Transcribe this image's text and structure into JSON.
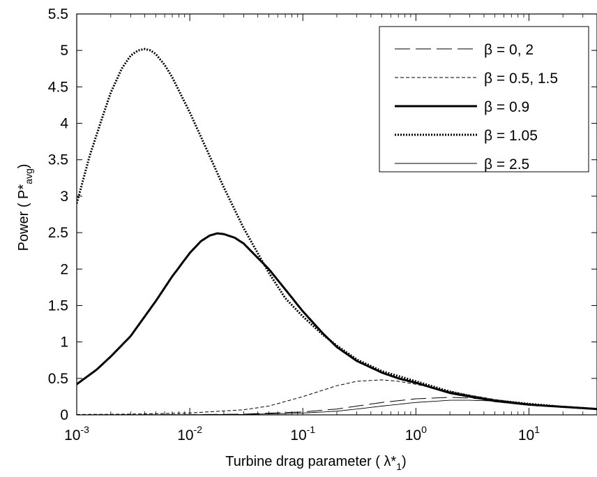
{
  "chart_data": {
    "type": "line",
    "xscale": "log",
    "xlim": [
      0.001,
      40
    ],
    "ylim": [
      0,
      5.5
    ],
    "xlabel": {
      "prefix": "Turbine drag parameter ( λ*",
      "sub": "1",
      "suffix": ")"
    },
    "ylabel": {
      "prefix": "Power ( P*",
      "sub": "avg",
      "suffix": ")"
    },
    "xticks": [
      {
        "value": 0.001,
        "base": "10",
        "exp": "-3"
      },
      {
        "value": 0.01,
        "base": "10",
        "exp": "-2"
      },
      {
        "value": 0.1,
        "base": "10",
        "exp": "-1"
      },
      {
        "value": 1,
        "base": "10",
        "exp": "0"
      },
      {
        "value": 10,
        "base": "10",
        "exp": "1"
      }
    ],
    "yticks": [
      {
        "value": 0,
        "label": "0"
      },
      {
        "value": 0.5,
        "label": "0.5"
      },
      {
        "value": 1,
        "label": "1"
      },
      {
        "value": 1.5,
        "label": "1.5"
      },
      {
        "value": 2,
        "label": "2"
      },
      {
        "value": 2.5,
        "label": "2.5"
      },
      {
        "value": 3,
        "label": "3"
      },
      {
        "value": 3.5,
        "label": "3.5"
      },
      {
        "value": 4,
        "label": "4"
      },
      {
        "value": 4.5,
        "label": "4.5"
      },
      {
        "value": 5,
        "label": "5"
      },
      {
        "value": 5.5,
        "label": "5.5"
      }
    ],
    "legend_position": "top-right",
    "series": [
      {
        "name": "β = 0, 2",
        "style": "longdash",
        "x": [
          0.001,
          0.01,
          0.03,
          0.1,
          0.2,
          0.3,
          0.5,
          1,
          2,
          3,
          5,
          10,
          20,
          40
        ],
        "y": [
          0.0,
          0.003,
          0.01,
          0.04,
          0.08,
          0.12,
          0.17,
          0.22,
          0.24,
          0.23,
          0.2,
          0.15,
          0.11,
          0.08
        ]
      },
      {
        "name": "β = 0.5, 1.5",
        "style": "dash",
        "x": [
          0.001,
          0.003,
          0.01,
          0.03,
          0.05,
          0.1,
          0.2,
          0.3,
          0.5,
          0.7,
          1,
          1.5,
          2,
          3,
          5,
          10,
          20,
          40
        ],
        "y": [
          0.005,
          0.01,
          0.025,
          0.07,
          0.12,
          0.25,
          0.4,
          0.46,
          0.48,
          0.46,
          0.42,
          0.36,
          0.32,
          0.27,
          0.21,
          0.15,
          0.11,
          0.08
        ]
      },
      {
        "name": "β = 0.9",
        "style": "thick",
        "x": [
          0.001,
          0.0015,
          0.002,
          0.003,
          0.005,
          0.007,
          0.01,
          0.0125,
          0.015,
          0.0175,
          0.02,
          0.025,
          0.03,
          0.05,
          0.07,
          0.1,
          0.15,
          0.2,
          0.3,
          0.5,
          0.7,
          1,
          2,
          3,
          5,
          10,
          20,
          40
        ],
        "y": [
          0.42,
          0.62,
          0.8,
          1.08,
          1.56,
          1.9,
          2.22,
          2.38,
          2.46,
          2.49,
          2.48,
          2.43,
          2.35,
          2.0,
          1.72,
          1.42,
          1.12,
          0.93,
          0.74,
          0.58,
          0.5,
          0.44,
          0.3,
          0.25,
          0.19,
          0.14,
          0.11,
          0.08
        ]
      },
      {
        "name": "β = 1.05",
        "style": "dotted",
        "x": [
          0.001,
          0.0013,
          0.0017,
          0.002,
          0.0025,
          0.003,
          0.0035,
          0.004,
          0.0045,
          0.005,
          0.006,
          0.007,
          0.01,
          0.015,
          0.02,
          0.03,
          0.05,
          0.07,
          0.1,
          0.15,
          0.2,
          0.3,
          0.5,
          1,
          2,
          3,
          5,
          10,
          20,
          40
        ],
        "y": [
          2.9,
          3.55,
          4.1,
          4.42,
          4.75,
          4.93,
          5.0,
          5.02,
          5.0,
          4.95,
          4.8,
          4.63,
          4.15,
          3.55,
          3.12,
          2.56,
          1.95,
          1.6,
          1.35,
          1.1,
          0.95,
          0.76,
          0.6,
          0.46,
          0.32,
          0.26,
          0.2,
          0.15,
          0.11,
          0.08
        ]
      },
      {
        "name": "β = 2.5",
        "style": "thin",
        "x": [
          0.001,
          0.01,
          0.03,
          0.1,
          0.2,
          0.3,
          0.5,
          1,
          2,
          3,
          5,
          10,
          20,
          40
        ],
        "y": [
          0.0,
          0.002,
          0.006,
          0.025,
          0.05,
          0.08,
          0.12,
          0.17,
          0.2,
          0.2,
          0.19,
          0.15,
          0.11,
          0.08
        ]
      }
    ]
  }
}
